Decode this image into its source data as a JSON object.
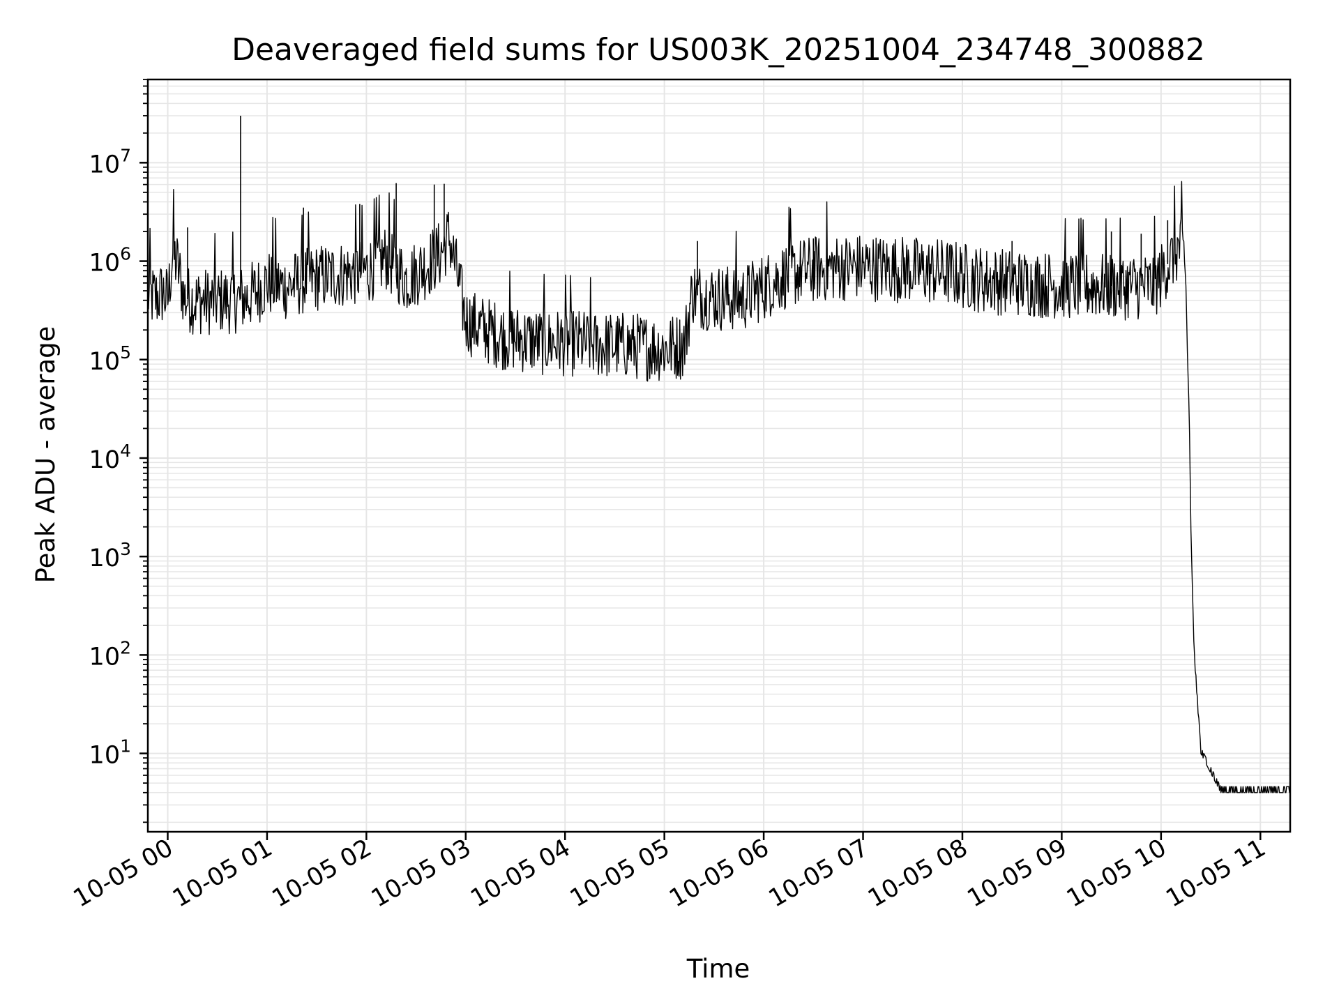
{
  "chart_data": {
    "type": "line",
    "title": "Deaveraged field sums for US003K_20251004_234748_300882",
    "xlabel": "Time",
    "ylabel": "Peak ADU - average",
    "yscale": "log",
    "ylim": [
      1.6,
      70000000
    ],
    "xlim": [
      "2025-10-04T23:48",
      "2025-10-05T11:18"
    ],
    "grid": true,
    "x_ticks": [
      {
        "t": "2025-10-05T00:00",
        "label": "10-05 00"
      },
      {
        "t": "2025-10-05T01:00",
        "label": "10-05 01"
      },
      {
        "t": "2025-10-05T02:00",
        "label": "10-05 02"
      },
      {
        "t": "2025-10-05T03:00",
        "label": "10-05 03"
      },
      {
        "t": "2025-10-05T04:00",
        "label": "10-05 04"
      },
      {
        "t": "2025-10-05T05:00",
        "label": "10-05 05"
      },
      {
        "t": "2025-10-05T06:00",
        "label": "10-05 06"
      },
      {
        "t": "2025-10-05T07:00",
        "label": "10-05 07"
      },
      {
        "t": "2025-10-05T08:00",
        "label": "10-05 08"
      },
      {
        "t": "2025-10-05T09:00",
        "label": "10-05 09"
      },
      {
        "t": "2025-10-05T10:00",
        "label": "10-05 10"
      },
      {
        "t": "2025-10-05T11:00",
        "label": "10-05 11"
      }
    ],
    "y_ticks": [
      {
        "value": 10,
        "base": "10",
        "exp": "1"
      },
      {
        "value": 100,
        "base": "10",
        "exp": "2"
      },
      {
        "value": 1000,
        "base": "10",
        "exp": "3"
      },
      {
        "value": 10000,
        "base": "10",
        "exp": "4"
      },
      {
        "value": 100000,
        "base": "10",
        "exp": "5"
      },
      {
        "value": 1000000,
        "base": "10",
        "exp": "6"
      },
      {
        "value": 10000000,
        "base": "10",
        "exp": "7"
      }
    ],
    "colors": {
      "line": "#000000",
      "grid": "#e6e6e6",
      "axes": "#000000"
    },
    "series": [
      {
        "x": [
          "2025-10-04T23:48",
          "2025-10-04T23:53",
          "2025-10-04T23:57",
          "2025-10-05T00:00",
          "2025-10-05T00:03",
          "2025-10-05T00:06",
          "2025-10-05T00:10",
          "2025-10-05T00:15",
          "2025-10-05T00:24",
          "2025-10-05T00:36",
          "2025-10-05T00:42",
          "2025-10-05T00:48",
          "2025-10-05T01:00",
          "2025-10-05T01:12",
          "2025-10-05T01:24",
          "2025-10-05T01:36",
          "2025-10-05T01:48",
          "2025-10-05T02:00",
          "2025-10-05T02:12",
          "2025-10-05T02:24",
          "2025-10-05T02:36",
          "2025-10-05T02:45",
          "2025-10-05T02:50",
          "2025-10-05T02:55",
          "2025-10-05T03:00",
          "2025-10-05T03:12",
          "2025-10-05T03:24",
          "2025-10-05T03:36",
          "2025-10-05T03:48",
          "2025-10-05T04:00",
          "2025-10-05T04:12",
          "2025-10-05T04:24",
          "2025-10-05T04:36",
          "2025-10-05T04:48",
          "2025-10-05T05:00",
          "2025-10-05T05:12",
          "2025-10-05T05:17",
          "2025-10-05T05:20",
          "2025-10-05T05:36",
          "2025-10-05T05:48",
          "2025-10-05T06:00",
          "2025-10-05T06:12",
          "2025-10-05T06:24",
          "2025-10-05T06:36",
          "2025-10-05T06:48",
          "2025-10-05T07:00",
          "2025-10-05T07:12",
          "2025-10-05T07:24",
          "2025-10-05T07:36",
          "2025-10-05T07:48",
          "2025-10-05T08:00",
          "2025-10-05T08:12",
          "2025-10-05T08:24",
          "2025-10-05T08:36",
          "2025-10-05T08:48",
          "2025-10-05T09:00",
          "2025-10-05T09:12",
          "2025-10-05T09:24",
          "2025-10-05T09:36",
          "2025-10-05T09:48",
          "2025-10-05T09:55",
          "2025-10-05T10:00",
          "2025-10-05T10:03",
          "2025-10-05T10:06",
          "2025-10-05T10:08",
          "2025-10-05T10:10",
          "2025-10-05T10:12",
          "2025-10-05T10:14",
          "2025-10-05T10:15",
          "2025-10-05T10:16",
          "2025-10-05T10:17",
          "2025-10-05T10:18",
          "2025-10-05T10:20",
          "2025-10-05T10:24",
          "2025-10-05T10:36",
          "2025-10-05T10:48",
          "2025-10-05T11:00",
          "2025-10-05T11:12",
          "2025-10-05T11:18"
        ],
        "values": [
          450000,
          420000,
          480000,
          400000,
          1200000,
          900000,
          420000,
          400000,
          390000,
          400000,
          410000,
          420000,
          600000,
          550000,
          650000,
          700000,
          750000,
          800000,
          1100000,
          650000,
          900000,
          1200000,
          1800000,
          700000,
          250000,
          200000,
          170000,
          160000,
          150000,
          150000,
          145000,
          140000,
          140000,
          135000,
          130000,
          140000,
          500000,
          450000,
          420000,
          430000,
          550000,
          700000,
          800000,
          850000,
          870000,
          880000,
          850000,
          830000,
          800000,
          780000,
          720000,
          650000,
          620000,
          600000,
          580000,
          570000,
          560000,
          560000,
          560000,
          560000,
          560000,
          700000,
          900000,
          1000000,
          1200000,
          1300000,
          1400000,
          1100000,
          600000,
          100000,
          30000,
          2000,
          100,
          10,
          4,
          4,
          4,
          4,
          4
        ]
      }
    ],
    "spikes": [
      {
        "t": "2025-10-05T00:12",
        "value": 2200000
      },
      {
        "t": "2025-10-05T00:44",
        "value": 30000000
      },
      {
        "t": "2025-10-05T01:22",
        "value": 3500000
      },
      {
        "t": "2025-10-05T01:56",
        "value": 3800000
      },
      {
        "t": "2025-10-05T02:18",
        "value": 6200000
      },
      {
        "t": "2025-10-05T02:41",
        "value": 6000000
      },
      {
        "t": "2025-10-05T02:47",
        "value": 6100000
      },
      {
        "t": "2025-10-05T05:20",
        "value": 1600000
      },
      {
        "t": "2025-10-05T06:30",
        "value": 1700000
      },
      {
        "t": "2025-10-05T08:30",
        "value": 1600000
      },
      {
        "t": "2025-10-05T09:30",
        "value": 2000000
      },
      {
        "t": "2025-10-05T09:48",
        "value": 1900000
      },
      {
        "t": "2025-10-05T10:04",
        "value": 2600000
      }
    ]
  }
}
